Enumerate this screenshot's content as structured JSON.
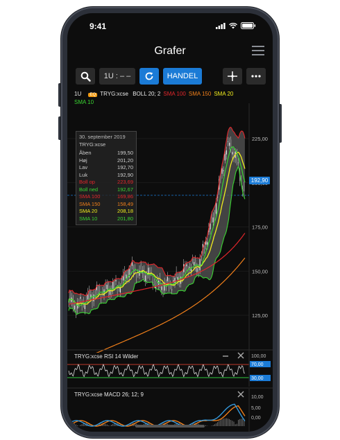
{
  "status": {
    "time": "9:41"
  },
  "header": {
    "title": "Grafer"
  },
  "toolbar": {
    "period_label": "1U : – –",
    "trade_label": "HANDEL"
  },
  "chart_header": {
    "interval": "1U",
    "badge": "EQ",
    "symbol": "TRYG:xcse",
    "indicators": [
      {
        "label": "BOLL 20; 2",
        "color": "#e8e8e8"
      },
      {
        "label": "SMA 100",
        "color": "#e3262b"
      },
      {
        "label": "SMA 150",
        "color": "#f07f1a"
      },
      {
        "label": "SMA 20",
        "color": "#f2ee1e"
      }
    ],
    "indicator_line2": {
      "label": "SMA 10",
      "color": "#3ad432"
    }
  },
  "price_axis": {
    "ticks": [
      "225,00",
      "200,00",
      "175,00",
      "150,00",
      "125,00"
    ],
    "current_price": "192,90"
  },
  "tooltip": {
    "date": "30. september 2019",
    "symbol": "TRYG:xcse",
    "rows": [
      {
        "label": "Åben",
        "value": "199,50",
        "color": "#cfcfcf"
      },
      {
        "label": "Høj",
        "value": "201,20",
        "color": "#cfcfcf"
      },
      {
        "label": "Lav",
        "value": "192,70",
        "color": "#cfcfcf"
      },
      {
        "label": "Luk",
        "value": "192,90",
        "color": "#cfcfcf"
      },
      {
        "label": "Boll op",
        "value": "223,69",
        "color": "#e3262b"
      },
      {
        "label": "Boll ned",
        "value": "192,67",
        "color": "#3ad432"
      },
      {
        "label": "SMA 100",
        "value": "169,86",
        "color": "#e3262b"
      },
      {
        "label": "SMA 150",
        "value": "158,49",
        "color": "#f07f1a"
      },
      {
        "label": "SMA 20",
        "value": "208,18",
        "color": "#f2ee1e"
      },
      {
        "label": "SMA 10",
        "value": "201,80",
        "color": "#3ad432"
      }
    ]
  },
  "rsi_panel": {
    "label": "TRYG:xcse",
    "indicator": "RSI 14 Wilder",
    "ticks": [
      "100,00",
      "70,00",
      "30,00"
    ]
  },
  "macd_panel": {
    "label": "TRYG:xcse",
    "indicator": "MACD 26; 12; 9",
    "ticks": [
      "10,00",
      "5,00",
      "0,00"
    ]
  }
}
